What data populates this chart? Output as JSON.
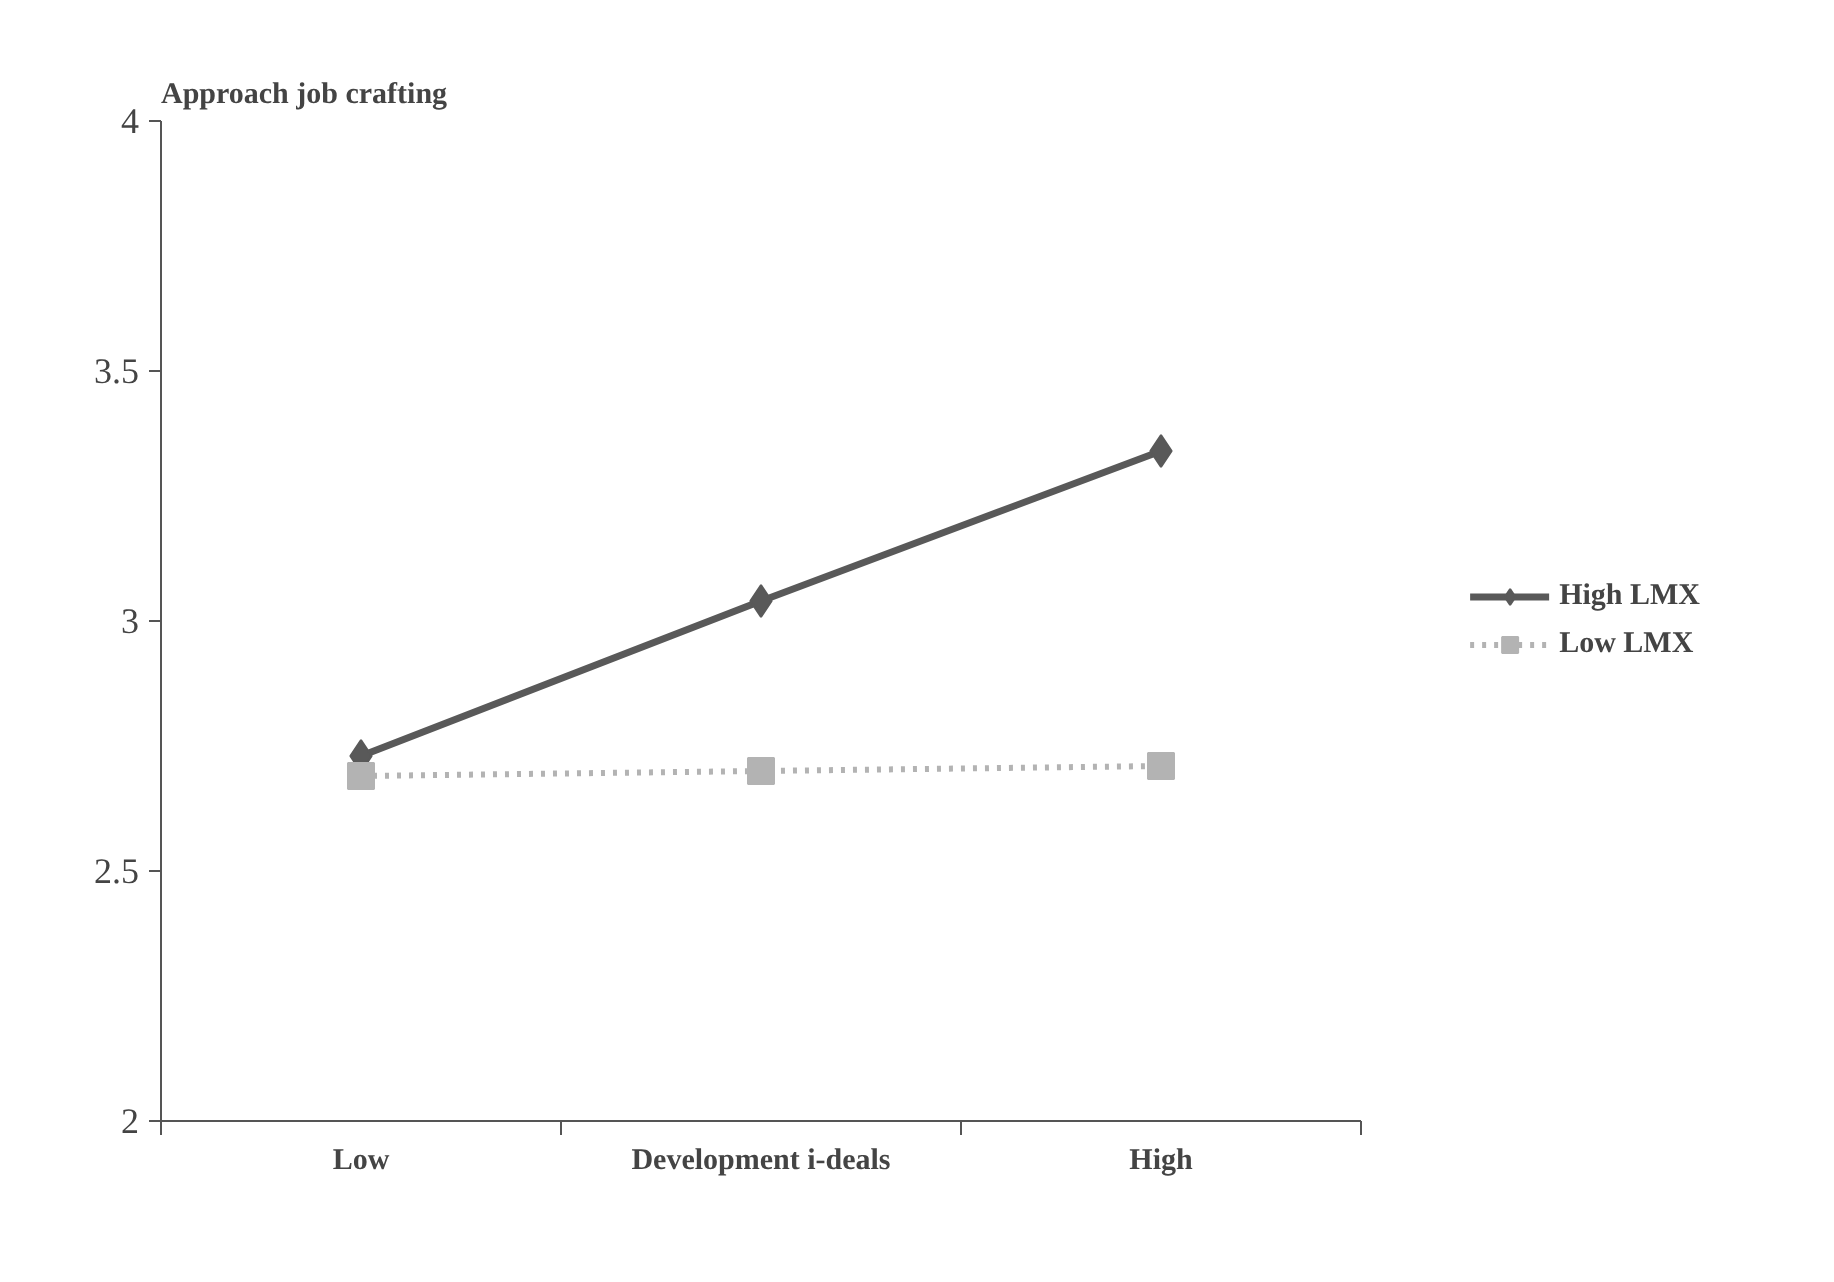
{
  "chart_data": {
    "type": "line",
    "title": "Approach job crafting",
    "categories": [
      "Low",
      "Development i-deals",
      "High"
    ],
    "ylim": [
      2,
      4
    ],
    "yticks": [
      2,
      2.5,
      3,
      3.5,
      4
    ],
    "grid": false,
    "legend": "right",
    "series": [
      {
        "name": "High LMX",
        "color": "#595959",
        "values": [
          2.73,
          3.04,
          3.34
        ],
        "marker": "diamond",
        "line_style": "solid"
      },
      {
        "name": "Low LMX",
        "color": "#b3b3b3",
        "values": [
          2.69,
          2.7,
          2.71
        ],
        "marker": "square",
        "line_style": "dotted"
      }
    ]
  }
}
